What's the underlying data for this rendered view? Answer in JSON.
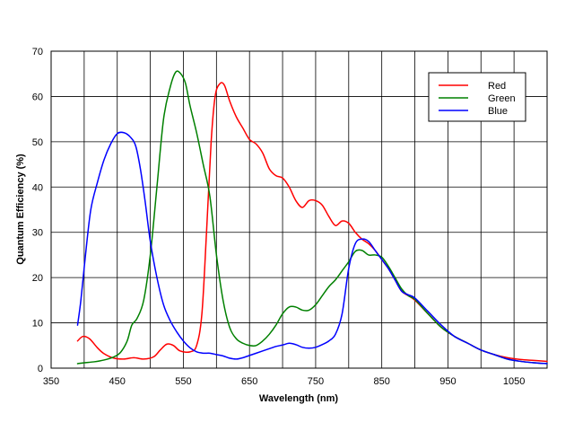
{
  "chart_data": {
    "type": "line",
    "title": "",
    "xlabel": "Wavelength (nm)",
    "ylabel": "Quantum Efficiency (%)",
    "xlim": [
      350,
      1100
    ],
    "ylim": [
      0,
      70
    ],
    "x_ticks": [
      350,
      450,
      550,
      650,
      750,
      850,
      950,
      1050
    ],
    "y_ticks": [
      0,
      10,
      20,
      30,
      40,
      50,
      60,
      70
    ],
    "x_grid": [
      350,
      400,
      450,
      500,
      550,
      600,
      650,
      700,
      750,
      800,
      850,
      900,
      950,
      1000,
      1050,
      1100
    ],
    "y_grid": [
      0,
      10,
      20,
      30,
      40,
      50,
      60,
      70
    ],
    "grid": true,
    "legend_position": "top-right",
    "series": [
      {
        "name": "Red",
        "color": "#ff0000",
        "points": [
          [
            390,
            6
          ],
          [
            398,
            7
          ],
          [
            408,
            6.5
          ],
          [
            420,
            4.5
          ],
          [
            430,
            3.2
          ],
          [
            445,
            2.2
          ],
          [
            460,
            2
          ],
          [
            475,
            2.3
          ],
          [
            490,
            2
          ],
          [
            505,
            2.5
          ],
          [
            515,
            4
          ],
          [
            525,
            5.3
          ],
          [
            535,
            5
          ],
          [
            545,
            3.8
          ],
          [
            560,
            3.6
          ],
          [
            570,
            5
          ],
          [
            578,
            12
          ],
          [
            585,
            30
          ],
          [
            592,
            50
          ],
          [
            598,
            60
          ],
          [
            605,
            62.8
          ],
          [
            612,
            62.5
          ],
          [
            620,
            59
          ],
          [
            630,
            55.5
          ],
          [
            640,
            53
          ],
          [
            650,
            50.5
          ],
          [
            660,
            49.5
          ],
          [
            670,
            47.5
          ],
          [
            680,
            44
          ],
          [
            690,
            42.5
          ],
          [
            700,
            42
          ],
          [
            710,
            40
          ],
          [
            720,
            37
          ],
          [
            730,
            35.5
          ],
          [
            740,
            37
          ],
          [
            750,
            37
          ],
          [
            760,
            36
          ],
          [
            770,
            33.5
          ],
          [
            780,
            31.5
          ],
          [
            790,
            32.5
          ],
          [
            800,
            32
          ],
          [
            810,
            30
          ],
          [
            820,
            28.5
          ],
          [
            830,
            27.5
          ],
          [
            840,
            26
          ],
          [
            850,
            24
          ],
          [
            860,
            22
          ],
          [
            870,
            19.5
          ],
          [
            880,
            17
          ],
          [
            890,
            16
          ],
          [
            900,
            15
          ],
          [
            920,
            12
          ],
          [
            940,
            9
          ],
          [
            960,
            7
          ],
          [
            980,
            5.5
          ],
          [
            1000,
            4
          ],
          [
            1020,
            3
          ],
          [
            1040,
            2.3
          ],
          [
            1060,
            1.9
          ],
          [
            1080,
            1.7
          ],
          [
            1100,
            1.5
          ]
        ]
      },
      {
        "name": "Green",
        "color": "#008000",
        "points": [
          [
            390,
            1
          ],
          [
            400,
            1.2
          ],
          [
            415,
            1.4
          ],
          [
            430,
            1.8
          ],
          [
            445,
            2.5
          ],
          [
            455,
            3.5
          ],
          [
            465,
            6
          ],
          [
            472,
            9.5
          ],
          [
            480,
            11
          ],
          [
            490,
            15
          ],
          [
            500,
            25
          ],
          [
            510,
            40
          ],
          [
            520,
            55
          ],
          [
            530,
            62
          ],
          [
            538,
            65.3
          ],
          [
            545,
            65.2
          ],
          [
            553,
            63
          ],
          [
            560,
            58
          ],
          [
            570,
            52
          ],
          [
            580,
            45
          ],
          [
            590,
            38
          ],
          [
            600,
            25
          ],
          [
            610,
            15
          ],
          [
            620,
            9
          ],
          [
            630,
            6.5
          ],
          [
            640,
            5.5
          ],
          [
            650,
            5
          ],
          [
            660,
            5
          ],
          [
            670,
            6
          ],
          [
            680,
            7.5
          ],
          [
            690,
            9.5
          ],
          [
            700,
            12
          ],
          [
            710,
            13.5
          ],
          [
            720,
            13.5
          ],
          [
            730,
            12.8
          ],
          [
            740,
            12.8
          ],
          [
            750,
            14
          ],
          [
            760,
            16
          ],
          [
            770,
            18
          ],
          [
            780,
            19.5
          ],
          [
            790,
            21.5
          ],
          [
            800,
            23.5
          ],
          [
            810,
            25.8
          ],
          [
            820,
            26
          ],
          [
            830,
            25
          ],
          [
            840,
            25
          ],
          [
            850,
            24.5
          ],
          [
            860,
            22.5
          ],
          [
            870,
            20
          ],
          [
            880,
            17.5
          ],
          [
            890,
            16
          ],
          [
            900,
            15.2
          ],
          [
            920,
            12
          ],
          [
            940,
            9
          ],
          [
            960,
            7
          ],
          [
            980,
            5.5
          ],
          [
            1000,
            4
          ],
          [
            1020,
            3
          ],
          [
            1040,
            2
          ],
          [
            1060,
            1.5
          ],
          [
            1080,
            1.2
          ],
          [
            1100,
            1
          ]
        ]
      },
      {
        "name": "Blue",
        "color": "#0000ff",
        "points": [
          [
            390,
            9.5
          ],
          [
            395,
            15
          ],
          [
            402,
            25
          ],
          [
            410,
            35
          ],
          [
            420,
            41
          ],
          [
            430,
            46
          ],
          [
            440,
            49.5
          ],
          [
            450,
            51.8
          ],
          [
            460,
            52
          ],
          [
            470,
            51
          ],
          [
            478,
            49
          ],
          [
            485,
            44
          ],
          [
            492,
            37
          ],
          [
            500,
            28
          ],
          [
            510,
            20
          ],
          [
            520,
            14
          ],
          [
            530,
            10.5
          ],
          [
            540,
            8
          ],
          [
            550,
            6
          ],
          [
            560,
            4.5
          ],
          [
            570,
            3.6
          ],
          [
            580,
            3.3
          ],
          [
            590,
            3.3
          ],
          [
            600,
            3
          ],
          [
            610,
            2.7
          ],
          [
            620,
            2.2
          ],
          [
            630,
            2
          ],
          [
            640,
            2.3
          ],
          [
            650,
            2.8
          ],
          [
            660,
            3.3
          ],
          [
            670,
            3.8
          ],
          [
            680,
            4.3
          ],
          [
            690,
            4.8
          ],
          [
            700,
            5.1
          ],
          [
            710,
            5.5
          ],
          [
            720,
            5.2
          ],
          [
            730,
            4.6
          ],
          [
            740,
            4.4
          ],
          [
            750,
            4.6
          ],
          [
            760,
            5.2
          ],
          [
            770,
            6
          ],
          [
            780,
            7.5
          ],
          [
            790,
            12
          ],
          [
            800,
            22
          ],
          [
            810,
            27.5
          ],
          [
            820,
            28.5
          ],
          [
            830,
            28
          ],
          [
            840,
            26
          ],
          [
            850,
            24
          ],
          [
            860,
            22
          ],
          [
            870,
            19.5
          ],
          [
            880,
            17
          ],
          [
            890,
            16.2
          ],
          [
            900,
            15.5
          ],
          [
            920,
            12.5
          ],
          [
            940,
            9.5
          ],
          [
            960,
            7
          ],
          [
            980,
            5.5
          ],
          [
            1000,
            4
          ],
          [
            1020,
            3
          ],
          [
            1040,
            2
          ],
          [
            1060,
            1.5
          ],
          [
            1080,
            1.2
          ],
          [
            1100,
            1
          ]
        ]
      }
    ]
  }
}
